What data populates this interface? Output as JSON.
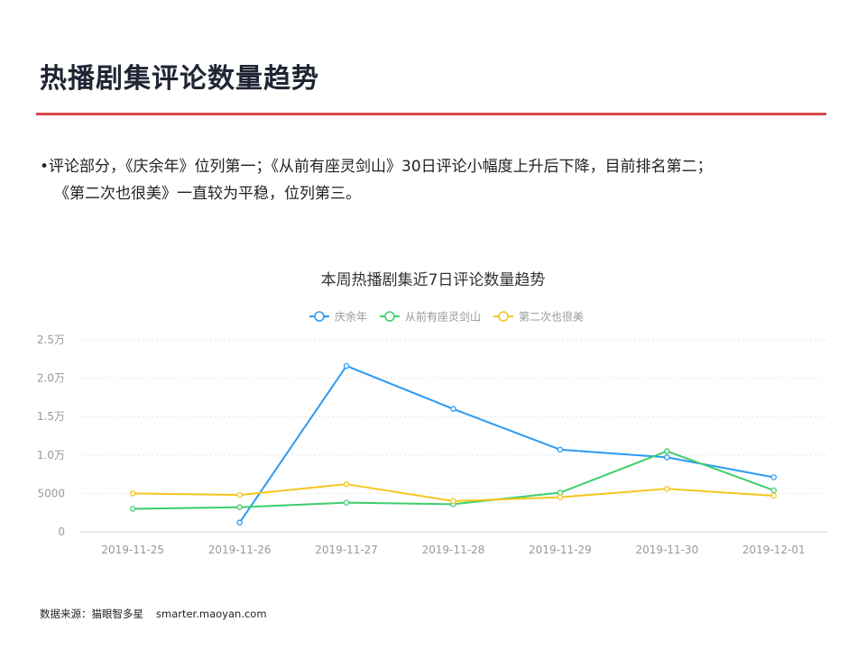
{
  "header": {
    "title": "热播剧集评论数量趋势"
  },
  "summary": {
    "bullet": "•",
    "line1": "评论部分，《庆余年》位列第一；《从前有座灵剑山》30日评论小幅度上升后下降，目前排名第二；",
    "line2": "《第二次也很美》一直较为平稳，位列第三。"
  },
  "chart_data": {
    "type": "line",
    "title": "本周热播剧集近7日评论数量趋势",
    "categories": [
      "2019-11-25",
      "2019-11-26",
      "2019-11-27",
      "2019-11-28",
      "2019-11-29",
      "2019-11-30",
      "2019-12-01"
    ],
    "y_ticks": [
      {
        "value": 0,
        "label": "0"
      },
      {
        "value": 5000,
        "label": "5000"
      },
      {
        "value": 10000,
        "label": "1.0万"
      },
      {
        "value": 15000,
        "label": "1.5万"
      },
      {
        "value": 20000,
        "label": "2.0万"
      },
      {
        "value": 25000,
        "label": "2.5万"
      }
    ],
    "ylim": [
      0,
      25000
    ],
    "grid": true,
    "legend_position": "top-center",
    "series": [
      {
        "name": "庆余年",
        "color": "#2b9af3",
        "values": [
          null,
          1200,
          21600,
          16000,
          10700,
          9700,
          7100
        ]
      },
      {
        "name": "从前有座灵剑山",
        "color": "#3ccf6a",
        "values": [
          3000,
          3200,
          3800,
          3600,
          5100,
          10500,
          5400
        ]
      },
      {
        "name": "第二次也很美",
        "color": "#f7c51e",
        "values": [
          5000,
          4800,
          6200,
          4000,
          4500,
          5600,
          4700
        ]
      }
    ]
  },
  "footer": {
    "source_label": "数据来源：猫眼智多星",
    "source_url": "smarter.maoyan.com"
  }
}
